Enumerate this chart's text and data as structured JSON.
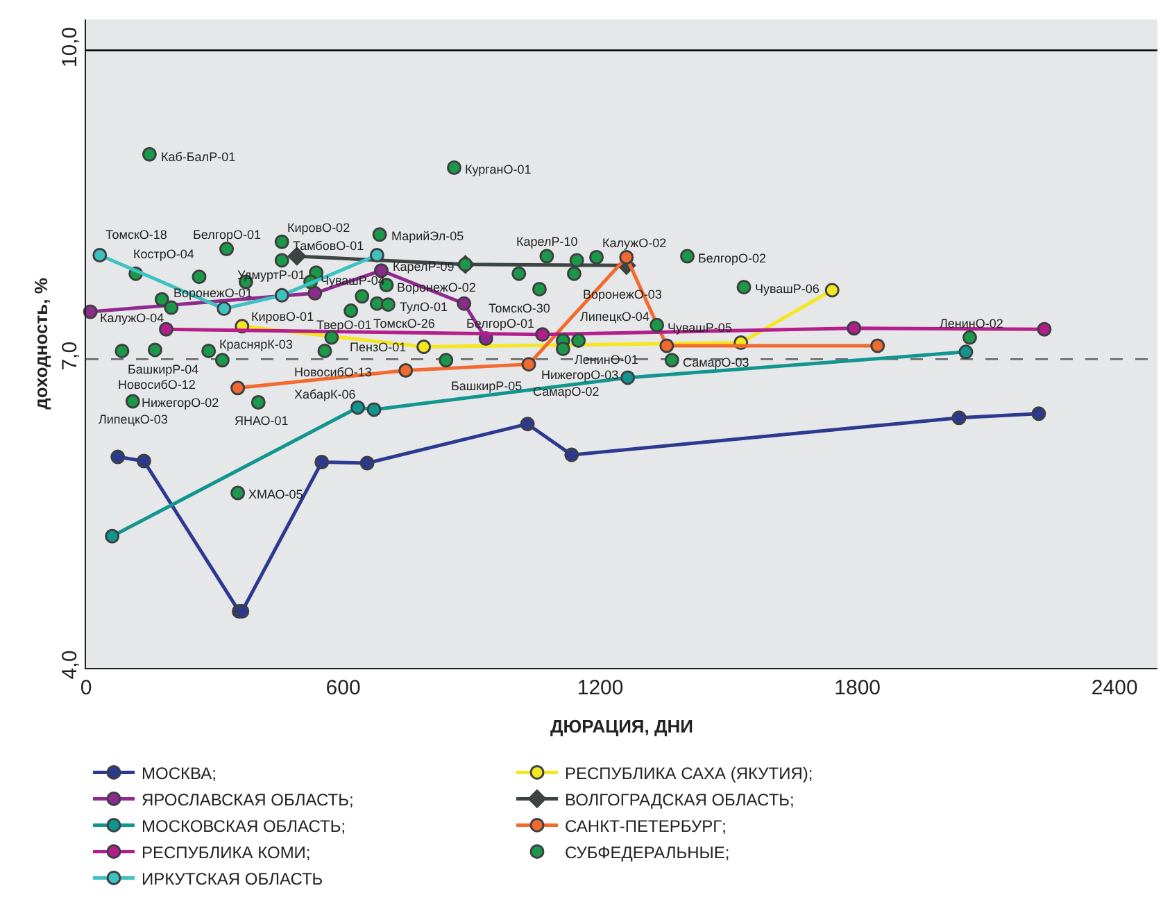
{
  "chart_data": {
    "type": "line",
    "xlabel": "ДЮРАЦИЯ, ДНИ",
    "ylabel": "доходность, %",
    "xlim": [
      0,
      2500
    ],
    "xticks": [
      0,
      600,
      1200,
      1800,
      2400
    ],
    "ylim": [
      4,
      10.3
    ],
    "yticks": [
      {
        "value": 4,
        "label": "4,0"
      },
      {
        "value": 7,
        "label": "7,0"
      },
      {
        "value": 10,
        "label": "10,0"
      }
    ],
    "grid": false,
    "legend": "bottom",
    "marker": "circle",
    "line_style": "solid",
    "ref_lines": [
      {
        "axis": "y",
        "value": 7,
        "label": null,
        "color": "#666666",
        "line_style": "dashed"
      },
      {
        "axis": "y",
        "value": 10,
        "label": null,
        "color": "#000000",
        "line_style": "solid"
      }
    ],
    "series": [
      {
        "name": "МОСКВА;",
        "color": "#2b3990",
        "x": [
          74,
          135,
          357,
          364,
          550,
          656,
          1030,
          1133,
          2037,
          2223
        ],
        "values": [
          6.05,
          6.01,
          4.55,
          4.55,
          6.0,
          5.99,
          6.37,
          6.07,
          6.43,
          6.47
        ]
      },
      {
        "name": "РЕСПУБЛИКА САХА (ЯКУТИЯ);",
        "color": "#f5e61e",
        "x": [
          364,
          788,
          1528,
          1741
        ],
        "values": [
          7.32,
          7.12,
          7.16,
          7.67
        ]
      },
      {
        "name": "ЯРОСЛАВСКАЯ ОБЛАСТЬ;",
        "color": "#8e2a8e",
        "x": [
          10,
          534,
          689,
          882,
          933
        ],
        "values": [
          7.46,
          7.64,
          7.86,
          7.54,
          7.2
        ]
      },
      {
        "name": "ВОЛГОГРАДСКАЯ ОБЛАСТЬ;",
        "color": "#3d4543",
        "marker": "diamond",
        "x": [
          492,
          885,
          1261
        ],
        "values": [
          8.0,
          7.92,
          7.91
        ]
      },
      {
        "name": "МОСКОВСКАЯ ОБЛАСТЬ;",
        "color": "#10968f",
        "x": [
          61,
          634,
          672,
          1264,
          2053
        ],
        "values": [
          5.28,
          6.53,
          6.51,
          6.82,
          7.07
        ]
      },
      {
        "name": "САНКТ-ПЕТЕРБУРГ;",
        "color": "#f26a2e",
        "x": [
          354,
          746,
          1033,
          1261,
          1355,
          1847
        ],
        "values": [
          6.72,
          6.89,
          6.95,
          7.99,
          7.13,
          7.13
        ]
      },
      {
        "name": "РЕСПУБЛИКА КОМИ;",
        "color": "#b31e8c",
        "x": [
          187,
          1065,
          1792,
          2236
        ],
        "values": [
          7.29,
          7.24,
          7.3,
          7.29
        ]
      },
      {
        "name": "СУБФЕДЕРАЛЬНЫЕ;",
        "color": "#1a9a48",
        "type": "scatter",
        "x": [
          148,
          328,
          457,
          457,
          685,
          264,
          116,
          373,
          537,
          524,
          701,
          644,
          679,
          705,
          618,
          177,
          199,
          573,
          84,
          161,
          286,
          318,
          557,
          109,
          402,
          354,
          859,
          885,
          1075,
          1010,
          1145,
          1191,
          1139,
          1058,
          1403,
          1535,
          1332,
          1149,
          1113,
          1113,
          840,
          1367,
          2062
        ],
        "values": [
          8.99,
          8.07,
          8.14,
          7.96,
          8.21,
          7.8,
          7.83,
          7.75,
          7.84,
          7.75,
          7.72,
          7.61,
          7.54,
          7.53,
          7.47,
          7.58,
          7.5,
          7.21,
          7.08,
          7.09,
          7.08,
          6.99,
          7.08,
          6.59,
          6.58,
          5.7,
          8.86,
          7.92,
          8.0,
          7.83,
          7.96,
          7.99,
          7.83,
          7.68,
          8.0,
          7.7,
          7.33,
          7.18,
          7.18,
          7.1,
          6.99,
          6.99,
          7.21
        ]
      },
      {
        "name": "ИРКУТСКАЯ ОБЛАСТЬ",
        "color": "#3ec1c1",
        "x": [
          32,
          322,
          457,
          679
        ],
        "values": [
          8.01,
          7.49,
          7.62,
          8.01
        ]
      }
    ],
    "annotations": [
      {
        "text": "Каб-БалР-01",
        "x": 148,
        "y": 8.99
      },
      {
        "text": "БелгорО-01",
        "x": 328,
        "y": 8.07
      },
      {
        "text": "КировО-02",
        "x": 457,
        "y": 8.14
      },
      {
        "text": "ТамбовО-01",
        "x": 457,
        "y": 7.96
      },
      {
        "text": "МарийЭл-05",
        "x": 685,
        "y": 8.21
      },
      {
        "text": "КострО-04",
        "x": 264,
        "y": 7.8
      },
      {
        "text": "ТомскО-18",
        "x": 116,
        "y": 7.83
      },
      {
        "text": "КировО-01",
        "x": 373,
        "y": 7.75
      },
      {
        "text": "УдмуртР-01",
        "x": 537,
        "y": 7.84
      },
      {
        "text": "ТверО-01",
        "x": 524,
        "y": 7.75
      },
      {
        "text": "ВоронежО-02",
        "x": 701,
        "y": 7.72
      },
      {
        "text": "ТомскО-26",
        "x": 644,
        "y": 7.61
      },
      {
        "text": "ПензО-01",
        "x": 679,
        "y": 7.54
      },
      {
        "text": "ТулО-01",
        "x": 705,
        "y": 7.53
      },
      {
        "text": "ЧувашР-04",
        "x": 618,
        "y": 7.47
      },
      {
        "text": "ВоронежО-01",
        "x": 177,
        "y": 7.58
      },
      {
        "text": "КалужО-04",
        "x": 199,
        "y": 7.5
      },
      {
        "text": "НовосибО-13",
        "x": 573,
        "y": 7.21
      },
      {
        "text": "БашкирР-04",
        "x": 84,
        "y": 7.08
      },
      {
        "text": "НовосибО-12",
        "x": 161,
        "y": 7.09
      },
      {
        "text": "КраснярК-03",
        "x": 286,
        "y": 7.08
      },
      {
        "text": "НижегорО-02",
        "x": 318,
        "y": 6.99
      },
      {
        "text": "ХабарК-06",
        "x": 557,
        "y": 7.08
      },
      {
        "text": "ЛипецкО-03",
        "x": 109,
        "y": 6.59
      },
      {
        "text": "ЯНАО-01",
        "x": 402,
        "y": 6.58
      },
      {
        "text": "ХМАО-05",
        "x": 354,
        "y": 5.7
      },
      {
        "text": "КурганО-01",
        "x": 859,
        "y": 8.86
      },
      {
        "text": "КарелР-09",
        "x": 885,
        "y": 7.92
      },
      {
        "text": "КарелР-10",
        "x": 1075,
        "y": 8.0
      },
      {
        "text": "ТомскО-30",
        "x": 1010,
        "y": 7.83
      },
      {
        "text": "КалужО-02",
        "x": 1191,
        "y": 7.99
      },
      {
        "text": "ВоронежО-03",
        "x": 1145,
        "y": 7.96
      },
      {
        "text": "БелгорО-01",
        "x": 1058,
        "y": 7.68
      },
      {
        "text": "ЛипецкО-04",
        "x": 1139,
        "y": 7.83
      },
      {
        "text": "БелгорО-02",
        "x": 1403,
        "y": 8.0
      },
      {
        "text": "ЧувашР-06",
        "x": 1535,
        "y": 7.7
      },
      {
        "text": "ЧувашР-05",
        "x": 1332,
        "y": 7.33
      },
      {
        "text": "ЛенинО-01",
        "x": 1113,
        "y": 7.18
      },
      {
        "text": "НижегорО-03",
        "x": 1149,
        "y": 7.18
      },
      {
        "text": "СамарО-02",
        "x": 1113,
        "y": 7.1
      },
      {
        "text": "БашкирР-05",
        "x": 840,
        "y": 6.99
      },
      {
        "text": "СамарО-03",
        "x": 1367,
        "y": 6.99
      },
      {
        "text": "ЛенинО-02",
        "x": 2062,
        "y": 7.21
      }
    ]
  }
}
